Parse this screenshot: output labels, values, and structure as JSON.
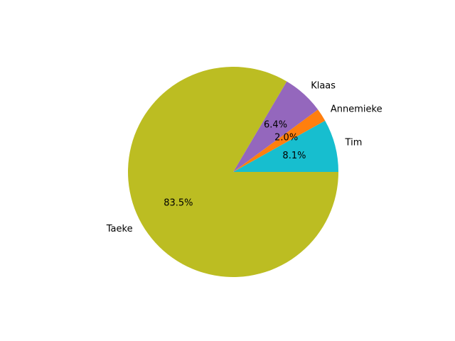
{
  "chart_data": {
    "type": "pie",
    "title": "",
    "start_angle_deg": 0,
    "direction": "counterclockwise",
    "slices": [
      {
        "label": "Tim",
        "value": 8.1,
        "pct_label": "8.1%",
        "color": "#17becf"
      },
      {
        "label": "Annemieke",
        "value": 2.0,
        "pct_label": "2.0%",
        "color": "#ff7f0e"
      },
      {
        "label": "Klaas",
        "value": 6.4,
        "pct_label": "6.4%",
        "color": "#9467bd"
      },
      {
        "label": "Taeke",
        "value": 83.5,
        "pct_label": "83.5%",
        "color": "#bcbd22"
      }
    ]
  }
}
